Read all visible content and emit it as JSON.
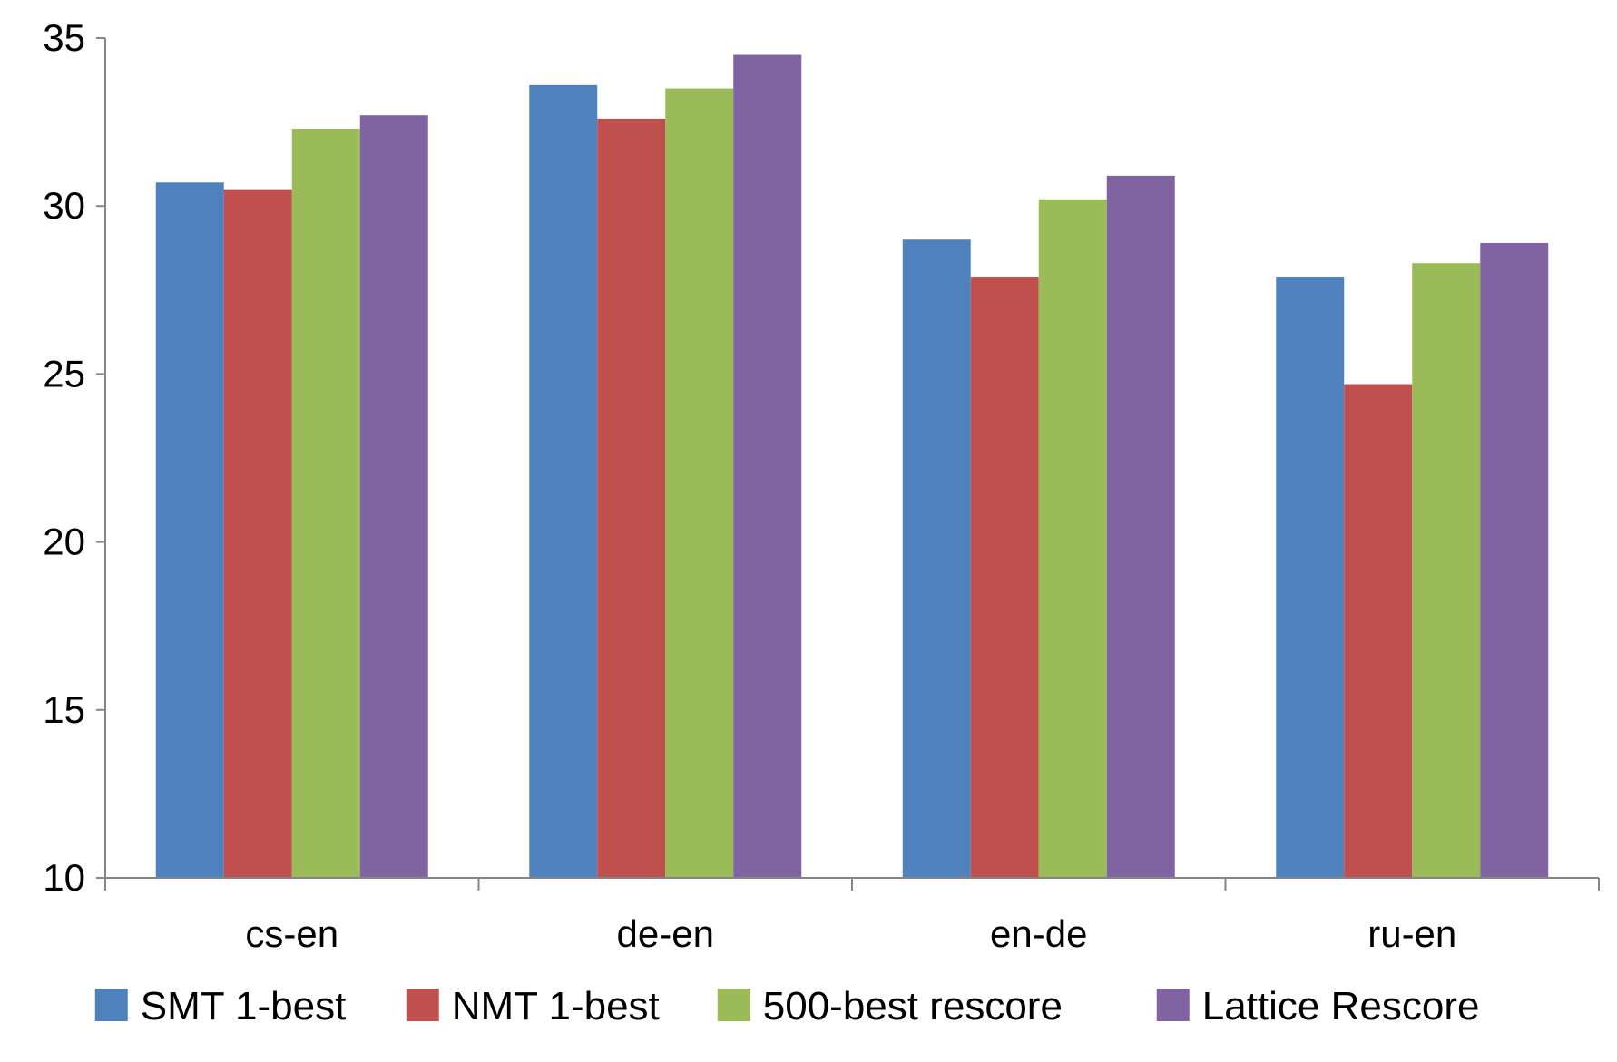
{
  "chart_data": {
    "type": "bar",
    "categories": [
      "cs-en",
      "de-en",
      "en-de",
      "ru-en"
    ],
    "series": [
      {
        "name": "SMT 1-best",
        "color": "#4F81BD",
        "values": [
          30.7,
          33.6,
          29.0,
          27.9
        ]
      },
      {
        "name": "NMT 1-best",
        "color": "#C0504D",
        "values": [
          30.5,
          32.6,
          27.9,
          24.7
        ]
      },
      {
        "name": "500-best rescore",
        "color": "#9BBB59",
        "values": [
          32.3,
          33.5,
          30.2,
          28.3
        ]
      },
      {
        "name": "Lattice Rescore",
        "color": "#8064A2",
        "values": [
          32.7,
          34.5,
          30.9,
          28.9
        ]
      }
    ],
    "ylim": [
      10,
      35
    ],
    "yticks": [
      10,
      15,
      20,
      25,
      30,
      35
    ],
    "grid": false,
    "legend_position": "bottom"
  }
}
